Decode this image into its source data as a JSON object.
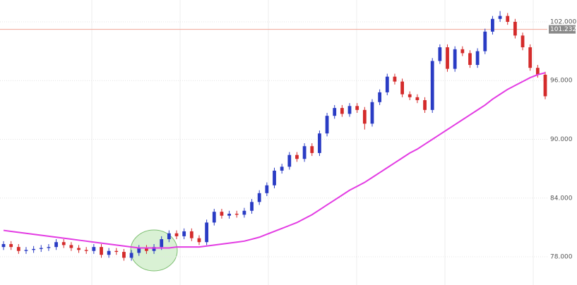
{
  "chart_data": {
    "type": "candlestick",
    "open": [
      79.0,
      79.3,
      79.0,
      78.6,
      78.7,
      78.8,
      78.9,
      79.0,
      79.5,
      79.2,
      78.9,
      78.7,
      78.6,
      79.0,
      78.2,
      78.6,
      78.5,
      77.9,
      78.4,
      78.9,
      78.6,
      79.0,
      79.8,
      80.4,
      80.1,
      80.6,
      79.9,
      79.5,
      81.5,
      82.6,
      82.2,
      82.4,
      82.3,
      82.7,
      83.6,
      84.5,
      85.3,
      86.8,
      87.2,
      88.4,
      88.0,
      89.3,
      88.6,
      90.6,
      92.4,
      93.2,
      92.6,
      93.4,
      93.0,
      91.6,
      93.8,
      94.8,
      96.4,
      95.9,
      94.6,
      94.3,
      94.0,
      93.0,
      98.0,
      99.4,
      97.2,
      99.2,
      98.8,
      97.6,
      99.0,
      101.0,
      102.3,
      102.6,
      102.0,
      100.6,
      99.4,
      97.3,
      96.6
    ],
    "high": [
      79.6,
      79.6,
      79.3,
      79.0,
      79.1,
      79.2,
      79.3,
      79.8,
      79.8,
      79.5,
      79.2,
      79.0,
      79.3,
      79.3,
      78.9,
      78.9,
      78.8,
      78.7,
      79.2,
      79.2,
      79.3,
      80.1,
      80.7,
      80.7,
      80.9,
      80.9,
      80.2,
      81.8,
      82.9,
      82.9,
      82.7,
      82.7,
      83.0,
      83.9,
      84.8,
      85.6,
      87.1,
      87.5,
      88.7,
      88.7,
      89.6,
      89.6,
      90.9,
      92.7,
      93.5,
      93.5,
      93.7,
      93.7,
      93.3,
      94.1,
      95.1,
      96.7,
      96.7,
      96.2,
      94.9,
      94.6,
      94.3,
      98.3,
      99.7,
      99.7,
      99.5,
      99.5,
      99.1,
      99.3,
      101.3,
      102.6,
      103.1,
      102.9,
      102.3,
      100.9,
      99.7,
      97.6,
      96.9
    ],
    "low": [
      78.7,
      78.7,
      78.3,
      78.3,
      78.4,
      78.5,
      78.6,
      78.7,
      78.9,
      78.6,
      78.4,
      78.3,
      78.3,
      77.9,
      77.9,
      78.2,
      77.6,
      77.6,
      78.1,
      78.3,
      78.3,
      78.7,
      79.5,
      79.8,
      79.8,
      79.6,
      79.2,
      79.2,
      81.2,
      81.9,
      81.9,
      82.0,
      82.0,
      82.4,
      83.3,
      84.2,
      85.0,
      86.5,
      86.9,
      87.7,
      87.7,
      88.3,
      88.3,
      90.3,
      92.1,
      92.3,
      92.3,
      92.7,
      91.0,
      91.3,
      93.5,
      94.5,
      95.6,
      94.3,
      94.0,
      93.7,
      92.7,
      92.7,
      97.7,
      96.9,
      96.9,
      98.5,
      97.3,
      97.3,
      98.7,
      100.7,
      102.0,
      101.7,
      100.3,
      99.1,
      97.0,
      96.3,
      94.1
    ],
    "close": [
      79.3,
      79.0,
      78.6,
      78.7,
      78.8,
      78.9,
      79.0,
      79.5,
      79.2,
      78.9,
      78.7,
      78.6,
      79.0,
      78.2,
      78.6,
      78.5,
      77.9,
      78.4,
      78.9,
      78.6,
      79.0,
      79.8,
      80.4,
      80.1,
      80.6,
      79.9,
      79.5,
      81.5,
      82.6,
      82.2,
      82.4,
      82.3,
      82.7,
      83.6,
      84.5,
      85.3,
      86.8,
      87.2,
      88.4,
      88.0,
      89.3,
      88.6,
      90.6,
      92.4,
      93.2,
      92.6,
      93.4,
      93.0,
      91.6,
      93.8,
      94.8,
      96.4,
      95.9,
      94.6,
      94.3,
      94.0,
      93.0,
      98.0,
      99.4,
      97.2,
      99.2,
      98.8,
      97.6,
      99.0,
      101.0,
      102.3,
      102.6,
      102.0,
      100.6,
      99.4,
      97.3,
      96.6,
      94.4
    ],
    "up_color": "#2a3cc4",
    "down_color": "#d42b2b",
    "ma": {
      "color": "#e33ce3",
      "values": [
        80.7,
        80.6,
        80.5,
        80.4,
        80.3,
        80.2,
        80.1,
        80.0,
        79.9,
        79.8,
        79.7,
        79.6,
        79.5,
        79.4,
        79.3,
        79.2,
        79.1,
        79.0,
        78.9,
        78.9,
        78.9,
        78.9,
        78.9,
        79.0,
        79.0,
        79.0,
        79.0,
        79.1,
        79.2,
        79.3,
        79.4,
        79.5,
        79.6,
        79.8,
        80.0,
        80.3,
        80.6,
        80.9,
        81.2,
        81.5,
        81.9,
        82.3,
        82.8,
        83.3,
        83.8,
        84.3,
        84.8,
        85.2,
        85.6,
        86.1,
        86.6,
        87.1,
        87.6,
        88.1,
        88.6,
        89.0,
        89.5,
        90.0,
        90.5,
        91.0,
        91.5,
        92.0,
        92.5,
        93.0,
        93.5,
        94.1,
        94.6,
        95.1,
        95.5,
        95.9,
        96.3,
        96.6,
        96.8
      ]
    },
    "price_line": {
      "value": 101.232,
      "label": "101.232",
      "color": "#f0a596"
    },
    "ylim": [
      75.12,
      104.23
    ],
    "yticks": [
      {
        "value": 78,
        "label": "78.000"
      },
      {
        "value": 84,
        "label": "84.000"
      },
      {
        "value": 90,
        "label": "90.000"
      },
      {
        "value": 96,
        "label": "96.000"
      },
      {
        "value": 102,
        "label": "102.000"
      }
    ],
    "grid": true
  }
}
